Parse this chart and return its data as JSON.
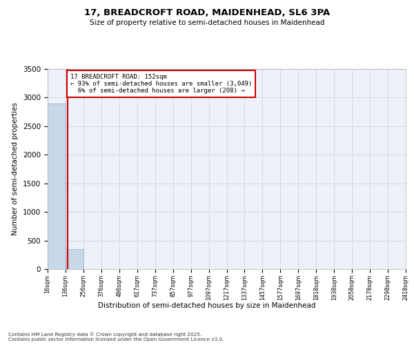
{
  "title_line1": "17, BREADCROFT ROAD, MAIDENHEAD, SL6 3PA",
  "title_line2": "Size of property relative to semi-detached houses in Maidenhead",
  "xlabel": "Distribution of semi-detached houses by size in Maidenhead",
  "ylabel": "Number of semi-detached properties",
  "property_size": 152,
  "pct_smaller": 93,
  "count_smaller": 3049,
  "pct_larger": 6,
  "count_larger": 208,
  "bin_edges": [
    16,
    136,
    256,
    376,
    496,
    617,
    737,
    857,
    977,
    1097,
    1217,
    1337,
    1457,
    1577,
    1697,
    1818,
    1938,
    2058,
    2178,
    2298,
    2418
  ],
  "bin_heights": [
    2900,
    350,
    5,
    2,
    1,
    1,
    1,
    0,
    0,
    0,
    0,
    0,
    0,
    0,
    0,
    0,
    0,
    0,
    0,
    0
  ],
  "bar_color": "#c8d8e8",
  "bar_edge_color": "#8ab0c8",
  "property_line_color": "#cc0000",
  "annotation_box_color": "#cc0000",
  "grid_color": "#d0d8e8",
  "background_color": "#eef2f8",
  "ylim": [
    0,
    3500
  ],
  "yticks": [
    0,
    500,
    1000,
    1500,
    2000,
    2500,
    3000,
    3500
  ],
  "footnote": "Contains HM Land Registry data © Crown copyright and database right 2025.\nContains public sector information licensed under the Open Government Licence v3.0."
}
